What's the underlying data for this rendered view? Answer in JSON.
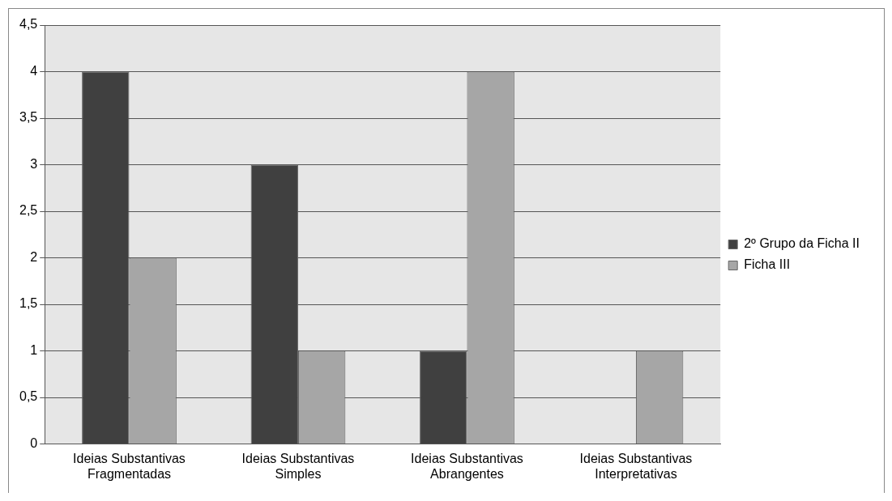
{
  "chart_data": {
    "type": "bar",
    "categories": [
      "Ideias Substantivas Fragmentadas",
      "Ideias Substantivas Simples",
      "Ideias Substantivas Abrangentes",
      "Ideias Substantivas Interpretativas"
    ],
    "series": [
      {
        "name": "2º Grupo da Ficha II",
        "color": "#404040",
        "values": [
          4,
          3,
          1,
          0
        ]
      },
      {
        "name": "Ficha III",
        "color": "#a6a6a6",
        "values": [
          2,
          1,
          4,
          1
        ]
      }
    ],
    "ylim": [
      0,
      4.5
    ],
    "yticks": [
      0,
      {
        "value": 0.5,
        "label": "0,5"
      },
      1,
      {
        "value": 1.5,
        "label": "1,5"
      },
      2,
      {
        "value": 2.5,
        "label": "2,5"
      },
      3,
      {
        "value": 3.5,
        "label": "3,5"
      },
      4,
      {
        "value": 4.5,
        "label": "4,5"
      }
    ],
    "grid": "y",
    "legend": "right"
  }
}
